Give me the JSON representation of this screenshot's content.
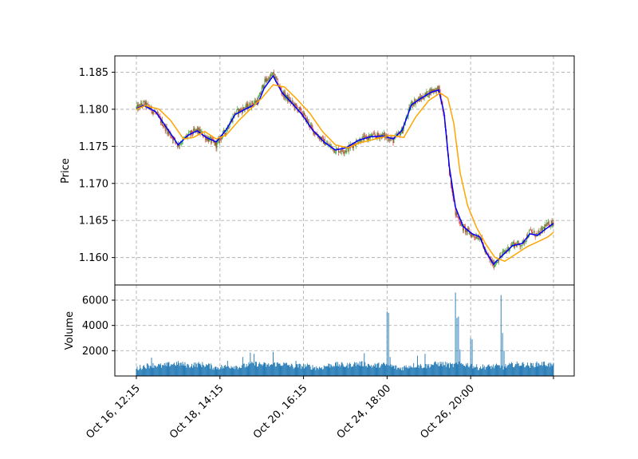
{
  "chart_data": [
    {
      "panel": "price",
      "type": "candlestick",
      "ylabel": "Price",
      "ylim": [
        1.1563,
        1.1872
      ],
      "yticks": [
        1.16,
        1.165,
        1.17,
        1.175,
        1.18,
        1.185
      ],
      "ytick_labels": [
        "1.160",
        "1.165",
        "1.170",
        "1.175",
        "1.180",
        "1.185"
      ],
      "grid": true,
      "up_color": "#2ca02c",
      "down_color": "#d62728",
      "approx_close_path": [
        [
          0,
          1.1801
        ],
        [
          10,
          1.1808
        ],
        [
          25,
          1.1795
        ],
        [
          40,
          1.1772
        ],
        [
          55,
          1.1752
        ],
        [
          68,
          1.1765
        ],
        [
          80,
          1.1772
        ],
        [
          92,
          1.1762
        ],
        [
          105,
          1.1752
        ],
        [
          118,
          1.1772
        ],
        [
          130,
          1.1795
        ],
        [
          145,
          1.1803
        ],
        [
          160,
          1.1812
        ],
        [
          168,
          1.1836
        ],
        [
          180,
          1.1847
        ],
        [
          192,
          1.1822
        ],
        [
          205,
          1.1808
        ],
        [
          218,
          1.1795
        ],
        [
          232,
          1.1772
        ],
        [
          248,
          1.1755
        ],
        [
          262,
          1.1745
        ],
        [
          276,
          1.1745
        ],
        [
          292,
          1.1758
        ],
        [
          308,
          1.1763
        ],
        [
          325,
          1.1765
        ],
        [
          338,
          1.1758
        ],
        [
          350,
          1.1772
        ],
        [
          362,
          1.1808
        ],
        [
          375,
          1.1815
        ],
        [
          388,
          1.1825
        ],
        [
          398,
          1.1828
        ],
        [
          405,
          1.179
        ],
        [
          412,
          1.1715
        ],
        [
          420,
          1.166
        ],
        [
          430,
          1.164
        ],
        [
          442,
          1.163
        ],
        [
          452,
          1.1628
        ],
        [
          460,
          1.1605
        ],
        [
          470,
          1.159
        ],
        [
          482,
          1.1605
        ],
        [
          495,
          1.1618
        ],
        [
          508,
          1.1618
        ],
        [
          518,
          1.1635
        ],
        [
          528,
          1.163
        ],
        [
          538,
          1.1642
        ],
        [
          549,
          1.1648
        ]
      ],
      "series": [
        {
          "name": "",
          "type": "line",
          "color": "#0000ff",
          "points": [
            [
              0,
              1.1801
            ],
            [
              10,
              1.1805
            ],
            [
              25,
              1.1797
            ],
            [
              40,
              1.1775
            ],
            [
              55,
              1.1752
            ],
            [
              68,
              1.1765
            ],
            [
              80,
              1.1771
            ],
            [
              92,
              1.1762
            ],
            [
              105,
              1.1756
            ],
            [
              118,
              1.1772
            ],
            [
              130,
              1.1793
            ],
            [
              145,
              1.1801
            ],
            [
              160,
              1.1808
            ],
            [
              168,
              1.1828
            ],
            [
              180,
              1.1845
            ],
            [
              192,
              1.1822
            ],
            [
              205,
              1.1808
            ],
            [
              218,
              1.1793
            ],
            [
              232,
              1.1772
            ],
            [
              248,
              1.1755
            ],
            [
              262,
              1.1745
            ],
            [
              276,
              1.1748
            ],
            [
              292,
              1.1758
            ],
            [
              308,
              1.1763
            ],
            [
              325,
              1.1764
            ],
            [
              338,
              1.176
            ],
            [
              350,
              1.1772
            ],
            [
              362,
              1.1806
            ],
            [
              375,
              1.1815
            ],
            [
              388,
              1.1823
            ],
            [
              398,
              1.1826
            ],
            [
              405,
              1.1795
            ],
            [
              412,
              1.1722
            ],
            [
              420,
              1.1668
            ],
            [
              430,
              1.1642
            ],
            [
              442,
              1.1632
            ],
            [
              452,
              1.1628
            ],
            [
              460,
              1.1608
            ],
            [
              470,
              1.1591
            ],
            [
              482,
              1.1603
            ],
            [
              495,
              1.1616
            ],
            [
              508,
              1.1619
            ],
            [
              518,
              1.1632
            ],
            [
              528,
              1.163
            ],
            [
              538,
              1.1638
            ],
            [
              549,
              1.1646
            ]
          ]
        },
        {
          "name": "",
          "type": "line",
          "color": "#ffa500",
          "points": [
            [
              0,
              1.18
            ],
            [
              12,
              1.1805
            ],
            [
              30,
              1.18
            ],
            [
              45,
              1.1785
            ],
            [
              62,
              1.176
            ],
            [
              75,
              1.1762
            ],
            [
              90,
              1.177
            ],
            [
              105,
              1.176
            ],
            [
              118,
              1.1765
            ],
            [
              135,
              1.1785
            ],
            [
              150,
              1.18
            ],
            [
              165,
              1.1815
            ],
            [
              180,
              1.1833
            ],
            [
              195,
              1.183
            ],
            [
              210,
              1.1815
            ],
            [
              228,
              1.1795
            ],
            [
              245,
              1.177
            ],
            [
              262,
              1.1752
            ],
            [
              278,
              1.1748
            ],
            [
              295,
              1.1755
            ],
            [
              315,
              1.176
            ],
            [
              335,
              1.1765
            ],
            [
              352,
              1.1762
            ],
            [
              368,
              1.179
            ],
            [
              385,
              1.1812
            ],
            [
              400,
              1.1822
            ],
            [
              410,
              1.1815
            ],
            [
              418,
              1.178
            ],
            [
              426,
              1.1715
            ],
            [
              436,
              1.167
            ],
            [
              448,
              1.164
            ],
            [
              460,
              1.1618
            ],
            [
              472,
              1.16
            ],
            [
              485,
              1.1595
            ],
            [
              500,
              1.1605
            ],
            [
              515,
              1.1615
            ],
            [
              530,
              1.1622
            ],
            [
              542,
              1.1628
            ],
            [
              549,
              1.1634
            ]
          ]
        }
      ]
    },
    {
      "panel": "volume",
      "type": "bar",
      "ylabel": "Volume",
      "ylim": [
        0,
        7200
      ],
      "yticks": [
        2000,
        4000,
        6000
      ],
      "ytick_labels": [
        "2000",
        "4000",
        "6000"
      ],
      "grid": true,
      "color": "#1f77b4",
      "spikes": [
        [
          20,
          1450
        ],
        [
          120,
          1200
        ],
        [
          140,
          1500
        ],
        [
          150,
          1850
        ],
        [
          155,
          1750
        ],
        [
          180,
          1900
        ],
        [
          210,
          1200
        ],
        [
          300,
          1800
        ],
        [
          330,
          5100
        ],
        [
          332,
          5000
        ],
        [
          334,
          1500
        ],
        [
          370,
          1600
        ],
        [
          380,
          1750
        ],
        [
          420,
          6600
        ],
        [
          422,
          4600
        ],
        [
          424,
          4700
        ],
        [
          426,
          2100
        ],
        [
          440,
          3000
        ],
        [
          442,
          2900
        ],
        [
          480,
          6400
        ],
        [
          482,
          3400
        ],
        [
          484,
          2000
        ]
      ]
    }
  ],
  "x_axis": {
    "tick_labels": [
      "Oct 16, 12:15",
      "Oct 18, 14:15",
      "Oct 20, 16:15",
      "Oct 24, 18:00",
      "Oct 26, 20:00",
      ""
    ],
    "tick_index": [
      0,
      110,
      220,
      330,
      440,
      549
    ],
    "n_bars": 550,
    "grid": true
  }
}
